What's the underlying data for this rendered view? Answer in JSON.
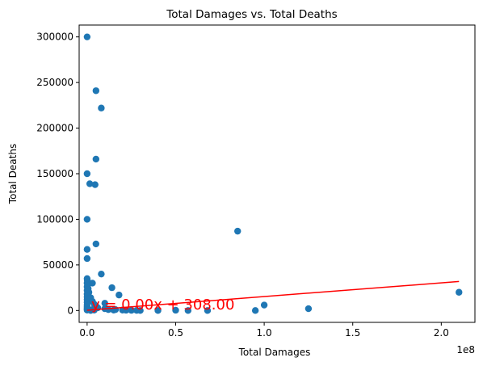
{
  "chart_data": {
    "type": "scatter",
    "title": "Total Damages vs. Total Deaths",
    "xlabel": "Total Damages",
    "ylabel": "Total Deaths",
    "x_offset_label": "1e8",
    "xlim": [
      -4500000,
      219000000
    ],
    "ylim": [
      -13000,
      313000
    ],
    "x_ticks": [
      0,
      50000000,
      100000000,
      150000000,
      200000000
    ],
    "x_tick_labels": [
      "0.0",
      "0.5",
      "1.0",
      "1.5",
      "2.0"
    ],
    "y_ticks": [
      0,
      50000,
      100000,
      150000,
      200000,
      250000,
      300000
    ],
    "y_tick_labels": [
      "0",
      "50000",
      "100000",
      "150000",
      "200000",
      "250000",
      "300000"
    ],
    "grid": false,
    "colors": {
      "points": "#1f77b4",
      "regression": "#ff0000"
    },
    "series": [
      {
        "x": [
          0,
          0,
          0,
          0,
          0,
          0,
          0,
          0,
          0,
          0,
          0,
          0,
          0,
          0,
          0,
          0,
          0,
          1000000,
          1500000,
          2000000,
          3000000,
          4000000,
          4500000,
          5000000,
          5000000,
          5000000,
          6000000,
          8000000,
          8000000,
          10000000,
          10000000,
          12000000,
          14000000,
          15000000,
          16000000,
          18000000,
          20000000,
          22000000,
          25000000,
          28000000,
          30000000,
          40000000,
          50000000,
          57000000,
          68000000,
          85000000,
          95000000,
          100000000,
          125000000,
          210000000,
          100000,
          300000,
          600000,
          2000000,
          3000000,
          4000000,
          5000000,
          3000000
        ],
        "y": [
          300000,
          150000,
          100000,
          67000,
          57000,
          35000,
          30000,
          26000,
          22000,
          18000,
          15000,
          12000,
          9000,
          6000,
          4000,
          2000,
          500,
          20000,
          139000,
          0,
          1000,
          500,
          138000,
          241000,
          166000,
          73000,
          3000,
          222000,
          40000,
          8000,
          2000,
          1000,
          25000,
          500,
          1000,
          17000,
          500,
          300,
          200,
          100,
          0,
          0,
          300,
          0,
          0,
          87000,
          0,
          6000,
          2000,
          20000,
          33000,
          28000,
          24000,
          14000,
          10000,
          7000,
          5000,
          30000
        ]
      }
    ],
    "regression": {
      "slope": 0.00015,
      "intercept": 308,
      "equation_label": "y = 0.00x + 308.00",
      "x_range": [
        0,
        210000000
      ]
    }
  }
}
